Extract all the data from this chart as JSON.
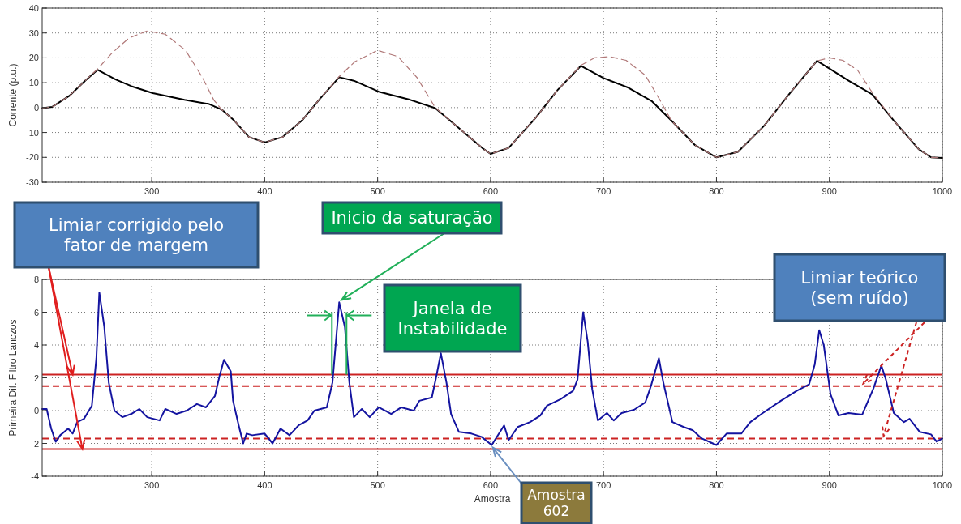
{
  "chart_data": [
    {
      "type": "line",
      "ylabel": "Corrente (p.u.)",
      "xlim": [
        203,
        1000
      ],
      "ylim": [
        -30,
        40
      ],
      "xticks": [
        300,
        400,
        500,
        600,
        700,
        800,
        900,
        1000
      ],
      "yticks": [
        -30,
        -20,
        -10,
        0,
        10,
        20,
        30,
        40
      ],
      "grid": true,
      "series": [
        {
          "color": "#000000",
          "x": [
            203,
            212,
            227,
            241,
            252,
            268,
            282,
            301,
            329,
            351,
            362,
            373,
            386,
            400,
            416,
            433,
            449,
            466,
            479,
            501,
            529,
            551,
            567,
            584,
            594,
            600,
            616,
            640,
            659,
            680,
            700,
            722,
            743,
            760,
            781,
            800,
            819,
            842,
            865,
            889,
            900,
            917,
            938,
            957,
            979,
            990,
            1000
          ],
          "values": [
            -0.2,
            0.3,
            4.7,
            10.8,
            15.2,
            11.3,
            8.6,
            5.8,
            3.1,
            1.4,
            -0.8,
            -5.2,
            -11.8,
            -14,
            -11.8,
            -5.2,
            3.6,
            12.2,
            10.8,
            6.4,
            3.1,
            -0.2,
            -6.3,
            -12.9,
            -16.7,
            -18.6,
            -16.2,
            -4.1,
            6.9,
            16.8,
            11.9,
            8,
            2.5,
            -5.2,
            -15.1,
            -20,
            -17.8,
            -7.4,
            5.8,
            18.8,
            15.7,
            10.8,
            5.3,
            -5.2,
            -16.7,
            -20,
            -20.2
          ]
        },
        {
          "color": "#b07878",
          "line_style": "dashed",
          "x": [
            203,
            212,
            227,
            241,
            252,
            265,
            280,
            296,
            312,
            330,
            345,
            355,
            362,
            373,
            386,
            400,
            416,
            433,
            449,
            466,
            480,
            500,
            518,
            535,
            551,
            567,
            584,
            594,
            600,
            616,
            640,
            659,
            680,
            692,
            705,
            720,
            737,
            750,
            760,
            781,
            800,
            819,
            842,
            865,
            889,
            900,
            912,
            925,
            938,
            957,
            979,
            990,
            1000
          ],
          "values": [
            -0.2,
            0.3,
            4.7,
            10.8,
            15.5,
            22,
            28,
            30.8,
            29.5,
            23,
            12,
            3,
            -0.8,
            -5.2,
            -11.8,
            -14,
            -11.8,
            -5.2,
            3.6,
            12.5,
            18.5,
            23,
            20.5,
            12,
            0,
            -6.3,
            -12.9,
            -16.7,
            -18.6,
            -16.2,
            -4.1,
            6.9,
            17,
            20,
            20.5,
            19,
            13,
            3,
            -5.2,
            -15.1,
            -20,
            -17.8,
            -7.4,
            5.8,
            18.8,
            20,
            19,
            15,
            6,
            -5.2,
            -16.7,
            -20,
            -20.2
          ]
        }
      ]
    },
    {
      "type": "line",
      "xlabel": "Amostra",
      "ylabel": "Primeira Dif. Filtro Lanczos",
      "xlim": [
        203,
        1000
      ],
      "ylim": [
        -4,
        8
      ],
      "xticks": [
        300,
        400,
        500,
        600,
        700,
        800,
        900,
        1000
      ],
      "yticks": [
        -4,
        -2,
        0,
        2,
        4,
        6,
        8
      ],
      "grid": true,
      "ref_lines": [
        {
          "axis": "y",
          "value": 2.2,
          "color": "#cc2222",
          "line_style": "solid"
        },
        {
          "axis": "y",
          "value": 1.5,
          "color": "#cc2222",
          "line_style": "dashed"
        },
        {
          "axis": "y",
          "value": -1.7,
          "color": "#cc2222",
          "line_style": "dashed"
        },
        {
          "axis": "y",
          "value": -2.35,
          "color": "#cc2222",
          "line_style": "solid"
        }
      ],
      "annotations": [
        {
          "text": "Limiar corrigido pelo fator de margem",
          "x": 230,
          "y": 2.2
        },
        {
          "text": "Inicio da saturação",
          "x": 466,
          "y": 6.6
        },
        "Janela de Instabilidade",
        {
          "text": "Limiar teórico (sem ruído)",
          "x": 930,
          "y": 1.5
        },
        {
          "text": "Amostra 602",
          "x": 602,
          "y": -2.1
        }
      ],
      "series": [
        {
          "color": "#1414a0",
          "x": [
            203,
            207,
            211,
            215,
            219,
            226,
            230,
            234,
            240,
            247,
            251,
            253.6,
            258,
            262,
            267,
            274,
            282,
            289,
            296,
            307,
            312,
            322,
            331,
            340,
            348,
            356,
            360,
            364,
            370,
            372,
            377,
            381,
            384,
            389,
            400,
            407,
            414,
            422,
            430,
            438,
            444,
            455,
            460,
            466,
            471,
            475,
            479,
            486,
            493,
            501,
            512,
            521,
            532,
            537,
            548,
            552,
            556,
            561,
            565,
            572,
            583,
            592,
            601,
            612,
            616,
            624,
            635,
            644,
            650,
            662,
            673,
            677,
            682,
            686,
            690,
            695,
            703,
            709,
            716,
            727,
            737,
            742,
            749,
            753,
            761,
            771,
            779,
            787,
            800,
            809,
            822,
            830,
            841,
            857,
            871,
            882,
            887,
            891,
            895,
            901,
            908,
            917,
            929,
            939,
            946,
            950,
            957,
            966,
            971,
            980,
            990,
            995,
            1000
          ],
          "values": [
            0.1,
            0.1,
            -1.1,
            -1.9,
            -1.5,
            -1.1,
            -1.4,
            -0.7,
            -0.5,
            0.3,
            3.2,
            7.2,
            5.1,
            1.7,
            0,
            -0.4,
            -0.2,
            0.1,
            -0.4,
            -0.6,
            0.1,
            -0.2,
            0,
            0.4,
            0.2,
            0.9,
            2.1,
            3.1,
            2.4,
            0.6,
            -0.9,
            -2,
            -1.4,
            -1.5,
            -1.4,
            -2,
            -1.1,
            -1.5,
            -0.9,
            -0.6,
            0,
            0.2,
            1.7,
            6.6,
            5.1,
            1.7,
            -0.4,
            0.1,
            -0.4,
            0.2,
            -0.2,
            0.2,
            0,
            0.6,
            0.8,
            2.1,
            3.5,
            1.7,
            -0.2,
            -1.3,
            -1.4,
            -1.6,
            -2.1,
            -0.9,
            -1.8,
            -1,
            -0.7,
            -0.3,
            0.3,
            0.7,
            1.2,
            1.9,
            6,
            4.2,
            1.3,
            -0.6,
            -0.15,
            -0.6,
            -0.15,
            0.05,
            0.5,
            1.5,
            3.2,
            1.7,
            -0.7,
            -1,
            -1.2,
            -1.7,
            -2.1,
            -1.4,
            -1.4,
            -0.7,
            -0.15,
            0.6,
            1.2,
            1.6,
            2.8,
            4.9,
            4,
            1,
            -0.3,
            -0.15,
            -0.25,
            1.35,
            2.75,
            1.9,
            -0.15,
            -0.7,
            -0.5,
            -1.3,
            -1.45,
            -1.9,
            -1.7
          ]
        }
      ]
    }
  ]
}
